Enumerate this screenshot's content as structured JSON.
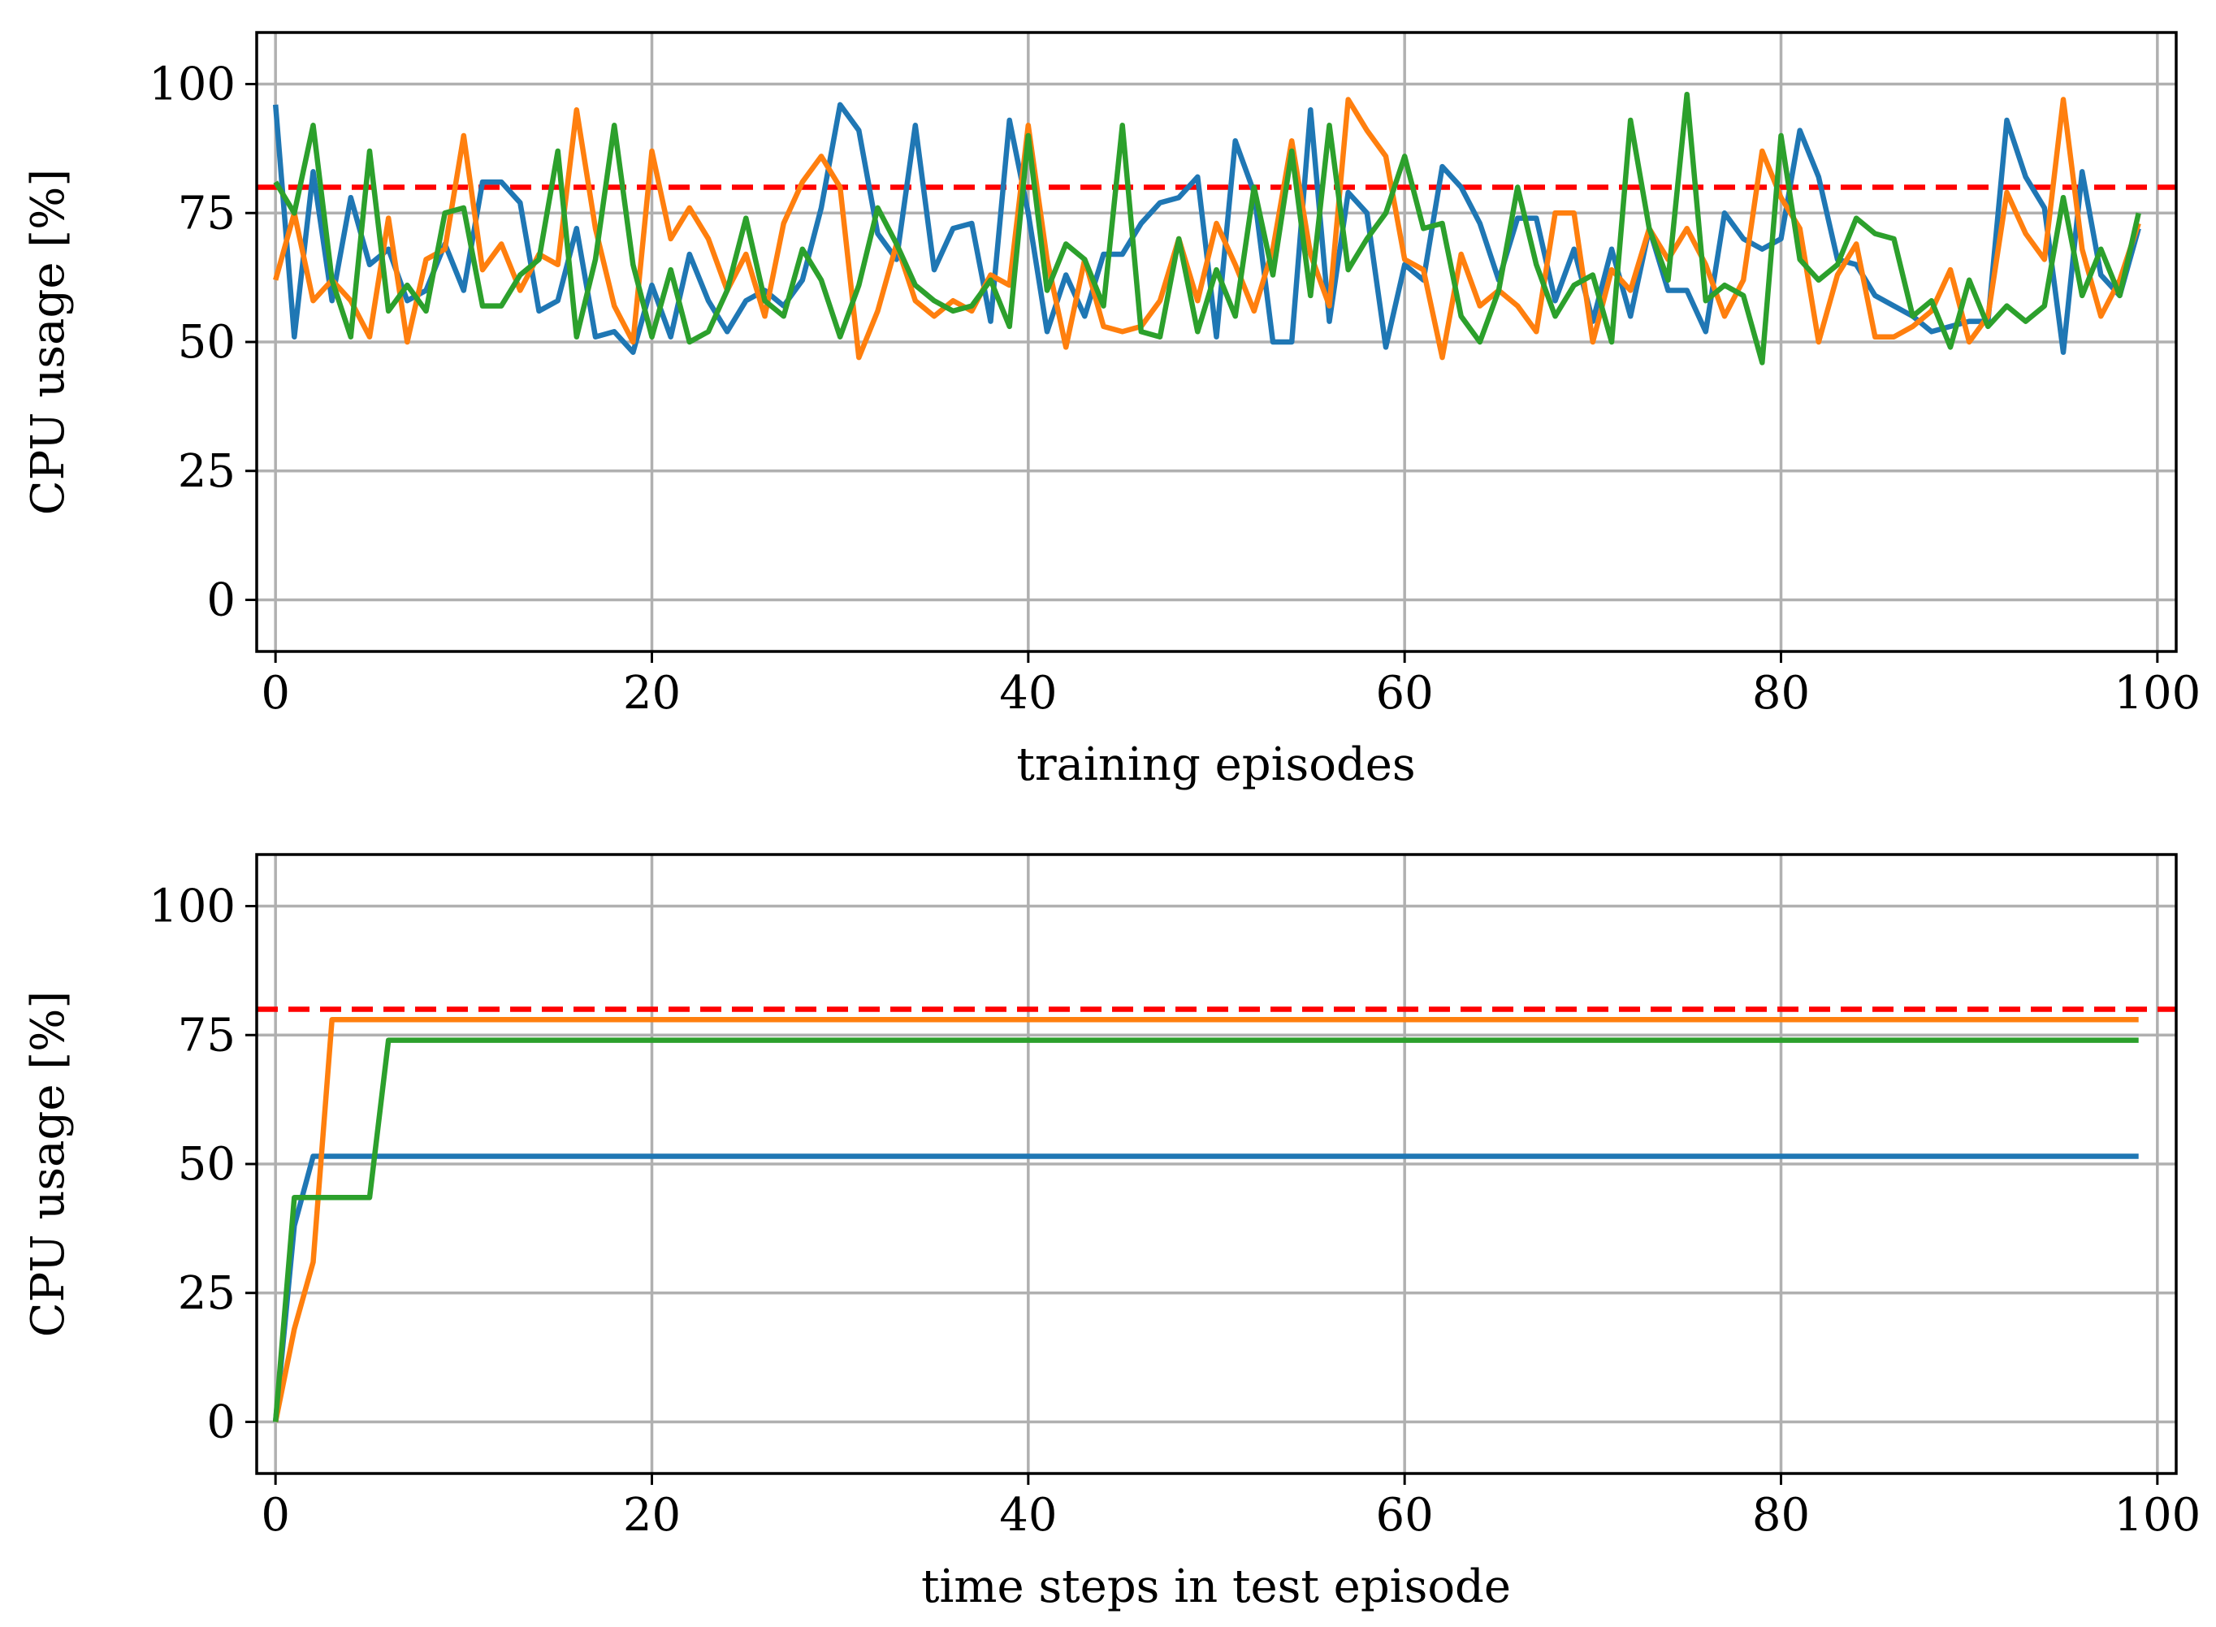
{
  "chart_data": [
    {
      "type": "line",
      "xlabel": "training episodes",
      "ylabel": "CPU usage [%]",
      "xlim": [
        -1,
        101
      ],
      "ylim": [
        -10,
        110
      ],
      "xticks": [
        "0",
        "20",
        "40",
        "60",
        "80",
        "100"
      ],
      "yticks": [
        "0",
        "25",
        "50",
        "75",
        "100"
      ],
      "grid": true,
      "threshold": {
        "value": 80,
        "color": "#ff0000",
        "style": "dashed"
      },
      "series": [
        {
          "name": "blue",
          "color": "#1f77b4",
          "values": [
            96,
            51,
            83,
            58,
            78,
            65,
            68,
            58,
            60,
            69,
            60,
            81,
            81,
            77,
            56,
            58,
            72,
            51,
            52,
            48,
            61,
            51,
            67,
            58,
            52,
            58,
            60,
            57,
            62,
            76,
            96,
            91,
            71,
            66,
            92,
            64,
            72,
            73,
            54,
            93,
            75,
            52,
            63,
            55,
            67,
            67,
            73,
            77,
            78,
            82,
            51,
            89,
            79,
            50,
            50,
            95,
            54,
            79,
            75,
            49,
            65,
            62,
            84,
            80,
            73,
            62,
            74,
            74,
            58,
            68,
            54,
            68,
            55,
            72,
            60,
            60,
            52,
            75,
            70,
            68,
            70,
            91,
            82,
            66,
            65,
            59,
            57,
            55,
            52,
            53,
            54,
            54,
            93,
            82,
            76,
            48,
            83,
            63,
            59,
            72
          ]
        },
        {
          "name": "orange",
          "color": "#ff7f0e",
          "values": [
            62,
            75,
            58,
            62,
            58,
            51,
            74,
            50,
            66,
            68,
            90,
            64,
            69,
            60,
            67,
            65,
            95,
            72,
            57,
            50,
            87,
            70,
            76,
            70,
            60,
            67,
            55,
            73,
            81,
            86,
            80,
            47,
            56,
            69,
            58,
            55,
            58,
            56,
            63,
            61,
            92,
            66,
            49,
            66,
            53,
            52,
            53,
            58,
            70,
            58,
            73,
            65,
            56,
            68,
            89,
            67,
            57,
            97,
            91,
            86,
            66,
            64,
            47,
            67,
            57,
            60,
            57,
            52,
            75,
            75,
            50,
            64,
            60,
            72,
            66,
            72,
            65,
            55,
            62,
            87,
            78,
            72,
            50,
            63,
            69,
            51,
            51,
            53,
            56,
            64,
            50,
            55,
            79,
            71,
            66,
            97,
            68,
            55,
            62,
            73
          ]
        },
        {
          "name": "green",
          "color": "#2ca02c",
          "values": [
            81,
            75,
            92,
            62,
            51,
            87,
            56,
            61,
            56,
            75,
            76,
            57,
            57,
            63,
            66,
            87,
            51,
            66,
            92,
            65,
            51,
            64,
            50,
            52,
            60,
            74,
            58,
            55,
            68,
            62,
            51,
            61,
            76,
            69,
            61,
            58,
            56,
            57,
            62,
            53,
            90,
            60,
            69,
            66,
            57,
            92,
            52,
            51,
            70,
            52,
            64,
            55,
            80,
            63,
            87,
            59,
            92,
            64,
            70,
            75,
            86,
            72,
            73,
            55,
            50,
            60,
            80,
            65,
            55,
            61,
            63,
            50,
            93,
            72,
            62,
            98,
            58,
            61,
            59,
            46,
            90,
            66,
            62,
            65,
            74,
            71,
            70,
            55,
            58,
            49,
            62,
            53,
            57,
            54,
            57,
            78,
            59,
            68,
            59,
            75
          ]
        }
      ]
    },
    {
      "type": "line",
      "xlabel": "time steps in test episode",
      "ylabel": "CPU usage [%]",
      "xlim": [
        -1,
        101
      ],
      "ylim": [
        -10,
        110
      ],
      "xticks": [
        "0",
        "20",
        "40",
        "60",
        "80",
        "100"
      ],
      "yticks": [
        "0",
        "25",
        "50",
        "75",
        "100"
      ],
      "grid": true,
      "threshold": {
        "value": 80,
        "color": "#ff0000",
        "style": "dashed"
      },
      "series": [
        {
          "name": "blue",
          "color": "#1f77b4",
          "points": [
            [
              0,
              0
            ],
            [
              1,
              38
            ],
            [
              2,
              51.5
            ],
            [
              99,
              51.5
            ]
          ]
        },
        {
          "name": "orange",
          "color": "#ff7f0e",
          "points": [
            [
              0,
              0
            ],
            [
              1,
              18
            ],
            [
              2,
              31
            ],
            [
              3,
              78
            ],
            [
              99,
              78
            ]
          ]
        },
        {
          "name": "green",
          "color": "#2ca02c",
          "points": [
            [
              0,
              0
            ],
            [
              1,
              43.5
            ],
            [
              5,
              43.5
            ],
            [
              6,
              74
            ],
            [
              99,
              74
            ]
          ]
        }
      ]
    }
  ]
}
